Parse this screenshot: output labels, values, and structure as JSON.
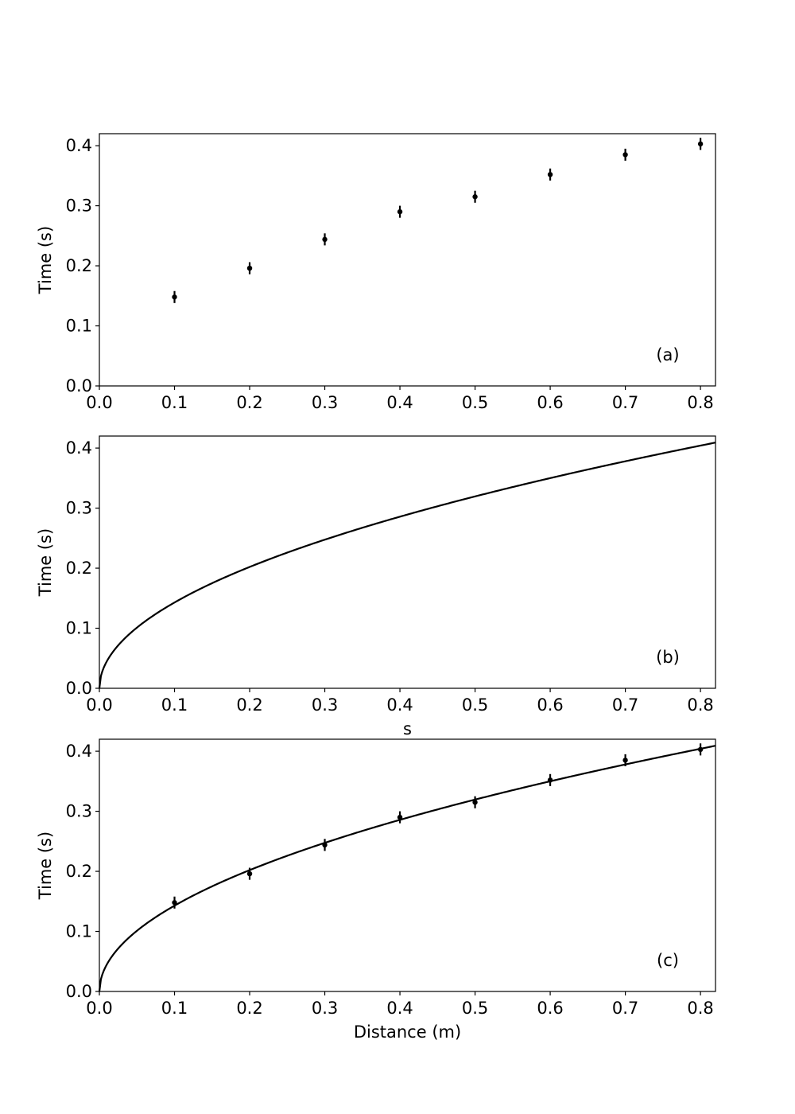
{
  "chart_data": [
    {
      "type": "scatter",
      "panel_label": "(a)",
      "xlabel": "",
      "ylabel": "Time (s)",
      "xlim": [
        0,
        0.82
      ],
      "ylim": [
        0,
        0.42
      ],
      "xticks": [
        "0.0",
        "0.1",
        "0.2",
        "0.3",
        "0.4",
        "0.5",
        "0.6",
        "0.7",
        "0.8"
      ],
      "yticks": [
        "0.0",
        "0.1",
        "0.2",
        "0.3",
        "0.4"
      ],
      "grid": false,
      "series": [
        {
          "kind": "errorbar",
          "x": [
            0.1,
            0.2,
            0.3,
            0.4,
            0.5,
            0.6,
            0.7,
            0.8
          ],
          "y": [
            0.148,
            0.196,
            0.244,
            0.29,
            0.315,
            0.352,
            0.385,
            0.403
          ],
          "yerr": 0.01,
          "color": "#000000"
        }
      ]
    },
    {
      "type": "line",
      "panel_label": "(b)",
      "xlabel": "s",
      "ylabel": "Time (s)",
      "xlim": [
        0,
        0.82
      ],
      "ylim": [
        0,
        0.42
      ],
      "xticks": [
        "0.0",
        "0.1",
        "0.2",
        "0.3",
        "0.4",
        "0.5",
        "0.6",
        "0.7",
        "0.8"
      ],
      "yticks": [
        "0.0",
        "0.1",
        "0.2",
        "0.3",
        "0.4"
      ],
      "grid": false,
      "series": [
        {
          "kind": "curve",
          "function": "t = sqrt(2s/9.8)",
          "coef": 0.4518,
          "power": 0.5,
          "color": "#000000"
        }
      ]
    },
    {
      "type": "scatter",
      "panel_label": "(c)",
      "xlabel": "Distance (m)",
      "ylabel": "Time (s)",
      "xlim": [
        0,
        0.82
      ],
      "ylim": [
        0,
        0.42
      ],
      "xticks": [
        "0.0",
        "0.1",
        "0.2",
        "0.3",
        "0.4",
        "0.5",
        "0.6",
        "0.7",
        "0.8"
      ],
      "yticks": [
        "0.0",
        "0.1",
        "0.2",
        "0.3",
        "0.4"
      ],
      "grid": false,
      "series": [
        {
          "kind": "errorbar",
          "x": [
            0.1,
            0.2,
            0.3,
            0.4,
            0.5,
            0.6,
            0.7,
            0.8
          ],
          "y": [
            0.148,
            0.196,
            0.244,
            0.29,
            0.315,
            0.352,
            0.385,
            0.403
          ],
          "yerr": 0.01,
          "color": "#000000"
        },
        {
          "kind": "curve",
          "function": "t = sqrt(2s/9.8)",
          "coef": 0.4518,
          "power": 0.5,
          "color": "#000000"
        }
      ]
    }
  ]
}
